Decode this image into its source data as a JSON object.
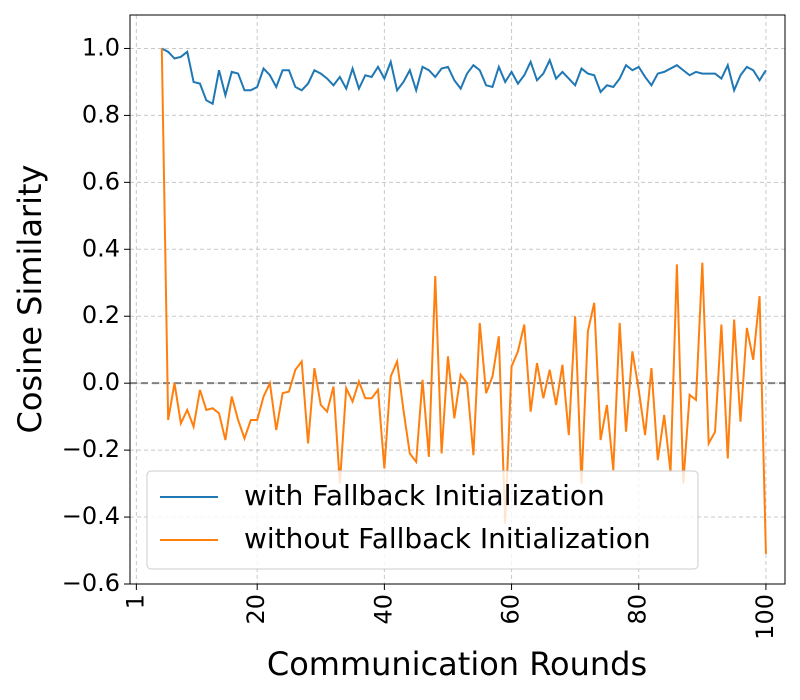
{
  "chart_data": {
    "type": "line",
    "xlabel": "Communication Rounds",
    "ylabel": "Cosine Similarity",
    "x": [
      5,
      6,
      7,
      8,
      9,
      10,
      11,
      12,
      13,
      14,
      15,
      16,
      17,
      18,
      19,
      20,
      21,
      22,
      23,
      24,
      25,
      26,
      27,
      28,
      29,
      30,
      31,
      32,
      33,
      34,
      35,
      36,
      37,
      38,
      39,
      40,
      41,
      42,
      43,
      44,
      45,
      46,
      47,
      48,
      49,
      50,
      51,
      52,
      53,
      54,
      55,
      56,
      57,
      58,
      59,
      60,
      61,
      62,
      63,
      64,
      65,
      66,
      67,
      68,
      69,
      70,
      71,
      72,
      73,
      74,
      75,
      76,
      77,
      78,
      79,
      80,
      81,
      82,
      83,
      84,
      85,
      86,
      87,
      88,
      89,
      90,
      91,
      92,
      93,
      94,
      95,
      96,
      97,
      98,
      99,
      100
    ],
    "series": [
      {
        "name": "with Fallback Initialization",
        "color": "#1f77b4",
        "values": [
          1.0,
          0.99,
          0.97,
          0.975,
          0.99,
          0.9,
          0.895,
          0.845,
          0.835,
          0.935,
          0.86,
          0.93,
          0.925,
          0.875,
          0.875,
          0.885,
          0.94,
          0.92,
          0.885,
          0.935,
          0.935,
          0.885,
          0.875,
          0.895,
          0.935,
          0.925,
          0.91,
          0.89,
          0.915,
          0.88,
          0.94,
          0.88,
          0.92,
          0.915,
          0.945,
          0.91,
          0.96,
          0.875,
          0.9,
          0.935,
          0.875,
          0.945,
          0.935,
          0.915,
          0.94,
          0.945,
          0.905,
          0.88,
          0.925,
          0.95,
          0.935,
          0.89,
          0.885,
          0.945,
          0.9,
          0.93,
          0.895,
          0.92,
          0.96,
          0.905,
          0.925,
          0.965,
          0.91,
          0.93,
          0.91,
          0.89,
          0.94,
          0.925,
          0.92,
          0.87,
          0.89,
          0.885,
          0.91,
          0.95,
          0.935,
          0.945,
          0.915,
          0.89,
          0.925,
          0.93,
          0.94,
          0.95,
          0.935,
          0.92,
          0.93,
          0.925,
          0.925,
          0.925,
          0.91,
          0.95,
          0.875,
          0.92,
          0.945,
          0.935,
          0.905,
          0.935
        ]
      },
      {
        "name": "without Fallback Initialization",
        "color": "#ff7f0e",
        "values": [
          1.0,
          -0.11,
          0.0,
          -0.12,
          -0.08,
          -0.13,
          -0.02,
          -0.08,
          -0.075,
          -0.09,
          -0.17,
          -0.04,
          -0.11,
          -0.165,
          -0.11,
          -0.11,
          -0.04,
          0.0,
          -0.14,
          -0.03,
          -0.025,
          0.04,
          0.065,
          -0.18,
          0.045,
          -0.065,
          -0.085,
          -0.01,
          -0.3,
          -0.015,
          -0.055,
          0.005,
          -0.045,
          -0.045,
          -0.02,
          -0.255,
          0.02,
          0.065,
          -0.08,
          -0.21,
          -0.235,
          0.01,
          -0.22,
          0.32,
          -0.21,
          0.08,
          -0.105,
          0.025,
          0.0,
          -0.215,
          0.18,
          -0.03,
          0.02,
          0.14,
          -0.42,
          0.05,
          0.095,
          0.175,
          -0.085,
          0.06,
          -0.045,
          0.04,
          -0.065,
          0.055,
          -0.155,
          0.2,
          -0.3,
          0.155,
          0.24,
          -0.17,
          -0.065,
          -0.26,
          0.18,
          -0.145,
          0.095,
          -0.02,
          -0.155,
          0.045,
          -0.23,
          -0.095,
          -0.265,
          0.355,
          -0.3,
          -0.035,
          -0.05,
          0.36,
          -0.18,
          -0.145,
          0.175,
          -0.225,
          0.19,
          -0.115,
          0.165,
          0.07,
          0.26,
          -0.51
        ]
      }
    ],
    "xlim": [
      0,
      103
    ],
    "xticks": [
      1,
      20,
      40,
      60,
      80,
      100
    ],
    "ylim": [
      -0.6,
      1.1
    ],
    "yticks": [
      {
        "value": -0.6,
        "label": "−0.6"
      },
      {
        "value": -0.4,
        "label": "−0.4"
      },
      {
        "value": -0.2,
        "label": "−0.2"
      },
      {
        "value": 0,
        "label": "0.0"
      },
      {
        "value": 0.2,
        "label": "0.2"
      },
      {
        "value": 0.4,
        "label": "0.4"
      },
      {
        "value": 0.6,
        "label": "0.6"
      },
      {
        "value": 0.8,
        "label": "0.8"
      },
      {
        "value": 1.0,
        "label": "1.0"
      }
    ],
    "reference_line": 0,
    "grid": true,
    "legend": "lower left"
  }
}
